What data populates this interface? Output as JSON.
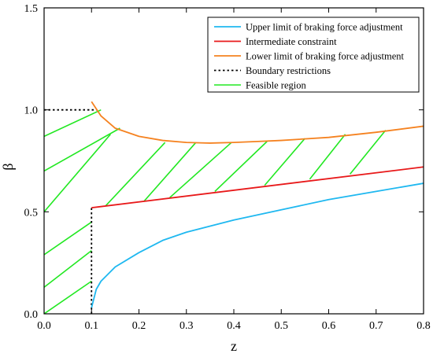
{
  "chart_data": {
    "type": "line",
    "xlabel": "z",
    "ylabel": "β",
    "xlim": [
      0,
      0.8
    ],
    "ylim": [
      0,
      1.5
    ],
    "x_ticks": [
      "0.0",
      "0.1",
      "0.2",
      "0.3",
      "0.4",
      "0.5",
      "0.6",
      "0.7",
      "0.8"
    ],
    "y_ticks": [
      "0.0",
      "0.5",
      "1.0",
      "1.5"
    ],
    "grid": false,
    "legend_position": "top-right",
    "series": [
      {
        "name": "Upper limit of braking force adjustment",
        "color": "#1fb8f0",
        "style": "solid",
        "x": [
          0.1,
          0.11,
          0.12,
          0.15,
          0.2,
          0.25,
          0.3,
          0.35,
          0.4,
          0.5,
          0.6,
          0.7,
          0.8
        ],
        "y": [
          0.03,
          0.12,
          0.16,
          0.23,
          0.3,
          0.36,
          0.4,
          0.43,
          0.46,
          0.51,
          0.56,
          0.6,
          0.64
        ]
      },
      {
        "name": "Intermediate constraint",
        "color": "#e8191a",
        "style": "solid",
        "x": [
          0.1,
          0.8
        ],
        "y": [
          0.52,
          0.72
        ]
      },
      {
        "name": "Lower limit of braking force adjustment",
        "color": "#f58220",
        "style": "solid",
        "x": [
          0.1,
          0.12,
          0.15,
          0.2,
          0.25,
          0.3,
          0.35,
          0.4,
          0.45,
          0.5,
          0.6,
          0.7,
          0.8
        ],
        "y": [
          1.04,
          0.97,
          0.91,
          0.87,
          0.85,
          0.84,
          0.837,
          0.84,
          0.845,
          0.85,
          0.865,
          0.89,
          0.92
        ]
      },
      {
        "name": "Boundary restrictions",
        "color": "#000000",
        "style": "dotted",
        "segments": [
          {
            "x": [
              0.0,
              0.11
            ],
            "y": [
              1.0,
              1.0
            ]
          },
          {
            "x": [
              0.1,
              0.1
            ],
            "y": [
              0.0,
              0.52
            ]
          }
        ]
      },
      {
        "name": "Feasible region",
        "color": "#22e822",
        "style": "hatch",
        "segments": [
          {
            "x": [
              0.0,
              0.1
            ],
            "y": [
              0.0,
              0.16
            ]
          },
          {
            "x": [
              0.0,
              0.1
            ],
            "y": [
              0.13,
              0.31
            ]
          },
          {
            "x": [
              0.0,
              0.1
            ],
            "y": [
              0.29,
              0.45
            ]
          },
          {
            "x": [
              0.0,
              0.14
            ],
            "y": [
              0.5,
              0.88
            ]
          },
          {
            "x": [
              0.0,
              0.16
            ],
            "y": [
              0.7,
              0.91
            ]
          },
          {
            "x": [
              0.0,
              0.12
            ],
            "y": [
              0.87,
              1.0
            ]
          },
          {
            "x": [
              0.13,
              0.255
            ],
            "y": [
              0.53,
              0.84
            ]
          },
          {
            "x": [
              0.21,
              0.32
            ],
            "y": [
              0.55,
              0.84
            ]
          },
          {
            "x": [
              0.265,
              0.395
            ],
            "y": [
              0.57,
              0.84
            ]
          },
          {
            "x": [
              0.36,
              0.47
            ],
            "y": [
              0.6,
              0.845
            ]
          },
          {
            "x": [
              0.465,
              0.55
            ],
            "y": [
              0.63,
              0.86
            ]
          },
          {
            "x": [
              0.56,
              0.635
            ],
            "y": [
              0.66,
              0.88
            ]
          },
          {
            "x": [
              0.645,
              0.72
            ],
            "y": [
              0.685,
              0.9
            ]
          }
        ]
      }
    ]
  }
}
